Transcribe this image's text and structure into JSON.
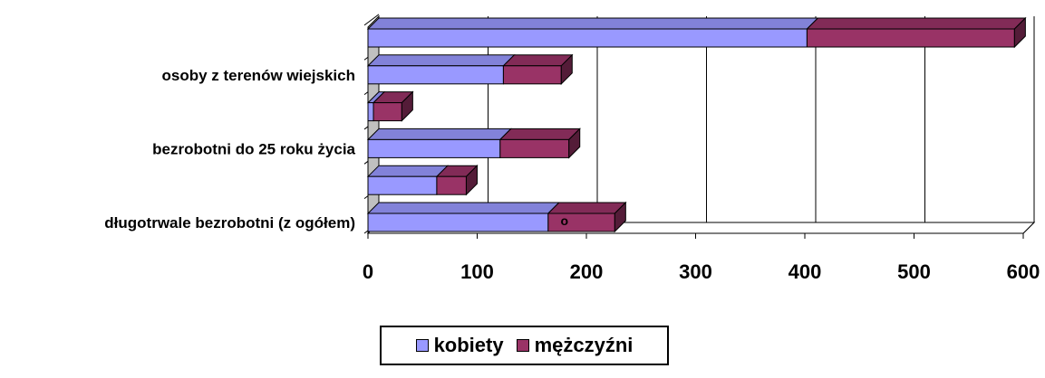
{
  "chart_data": {
    "type": "bar",
    "orientation": "horizontal",
    "stacked": true,
    "three_d": true,
    "categories": [
      "długotrwale bezrobotni (z ogółem)",
      "",
      "bezrobotni do 25 roku życia",
      "",
      "osoby z terenów wiejskich",
      ""
    ],
    "series": [
      {
        "name": "kobiety",
        "color": "#9999ff",
        "values": [
          165,
          63,
          121,
          5,
          124,
          402
        ]
      },
      {
        "name": "mężczyźni",
        "color": "#993366",
        "values": [
          61,
          27,
          63,
          26,
          53,
          190
        ]
      }
    ],
    "xlim": [
      0,
      600
    ],
    "xticks": [
      "0",
      "100",
      "200",
      "300",
      "400",
      "500",
      "600"
    ],
    "grid": "vertical",
    "legend": "bottom-center",
    "annotations": [
      {
        "text": "o",
        "category_index": 0,
        "x": 155
      }
    ]
  }
}
